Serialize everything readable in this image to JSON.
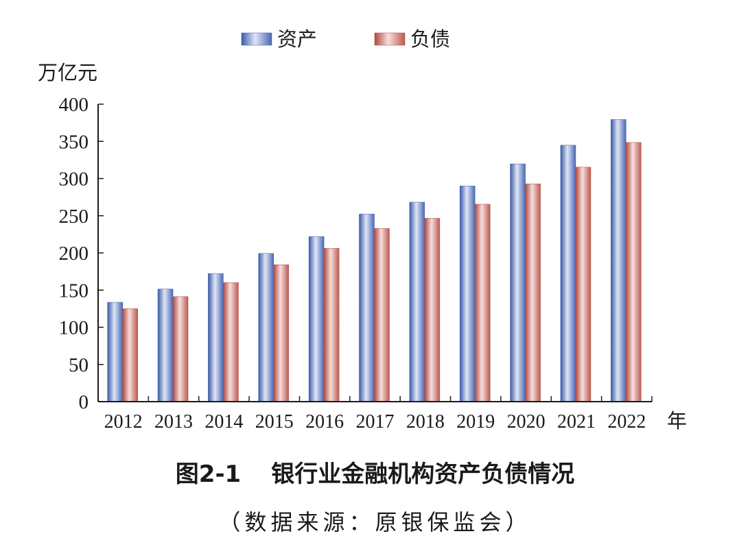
{
  "chart_data": {
    "type": "bar",
    "categories": [
      "2012",
      "2013",
      "2014",
      "2015",
      "2016",
      "2017",
      "2018",
      "2019",
      "2020",
      "2021",
      "2022"
    ],
    "series": [
      {
        "name": "资产",
        "values": [
          133.6,
          151.4,
          172.3,
          199.3,
          222.0,
          252.2,
          268.2,
          290.0,
          319.7,
          344.8,
          379.4
        ]
      },
      {
        "name": "负债",
        "values": [
          125.0,
          141.2,
          160.0,
          184.1,
          206.1,
          232.9,
          246.6,
          265.5,
          292.9,
          315.3,
          348.5
        ]
      }
    ],
    "colors": {
      "资产": "#5a78c0",
      "负债": "#c0625a"
    },
    "ylim": [
      0,
      400
    ],
    "yticks": [
      "0",
      "50",
      "100",
      "150",
      "200",
      "250",
      "300",
      "350",
      "400"
    ],
    "ylabel": "万亿元",
    "xlabel": "年",
    "legend_position": "top-center"
  },
  "caption": {
    "figure_number": "图2-1",
    "title": "银行业金融机构资产负债情况",
    "source": "（数据来源：原银保监会）"
  }
}
